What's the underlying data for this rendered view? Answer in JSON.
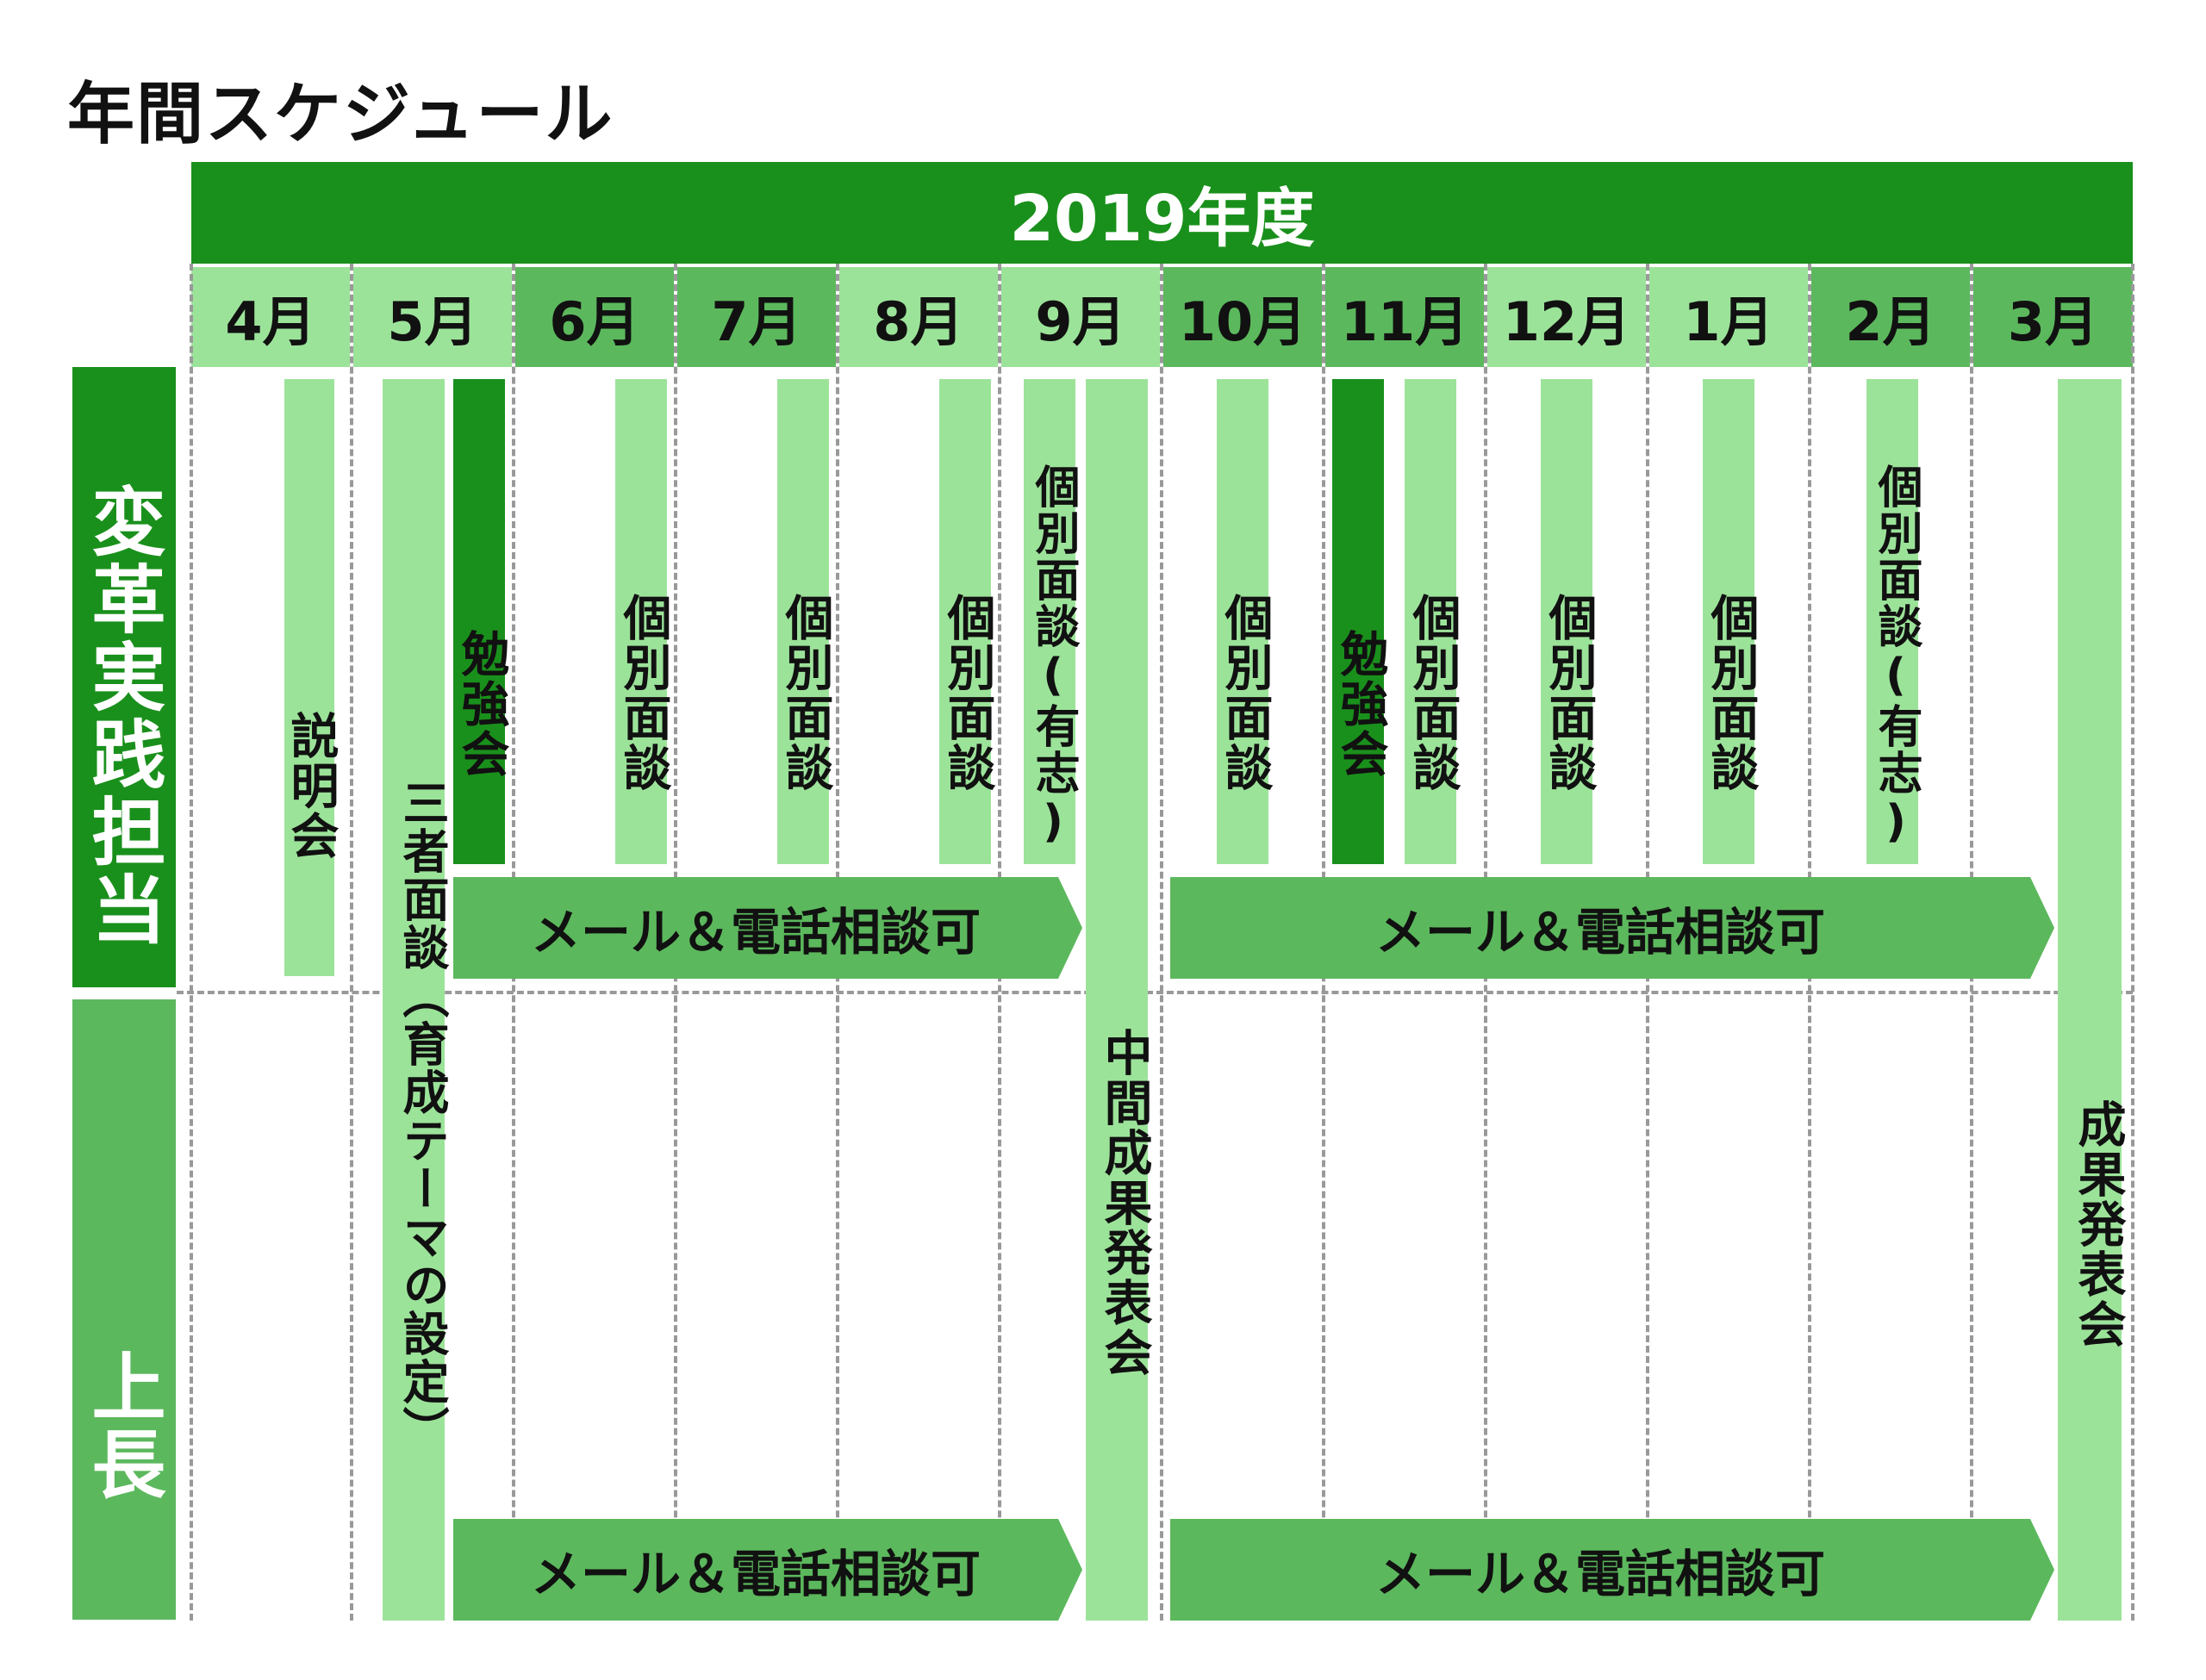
{
  "title": "年間スケジュール",
  "year_label": "2019年度",
  "months": [
    "4月",
    "5月",
    "6月",
    "7月",
    "8月",
    "9月",
    "10月",
    "11月",
    "12月",
    "1月",
    "2月",
    "3月"
  ],
  "roles": {
    "transformer": "変革実践担当",
    "manager": "上長"
  },
  "events": {
    "setsumeikai": "説明会",
    "sansha": "三者面談（育成テーマの設定）",
    "benkyo_1": "勉強会",
    "kobetsu_6": "個別面談",
    "kobetsu_7": "個別面談",
    "kobetsu_8": "個別面談",
    "kobetsu_9": "個別面談(有志)",
    "chukan": "中間成果発表会",
    "kobetsu_10": "個別面談",
    "benkyo_2": "勉強会",
    "kobetsu_11": "個別面談",
    "kobetsu_12": "個別面談",
    "kobetsu_1": "個別面談",
    "kobetsu_2": "個別面談(有志)",
    "seika": "成果発表会"
  },
  "contact": {
    "top_first": "メール＆電話相談可",
    "top_second": "メール＆電話相談可",
    "bottom_first": "メール＆電話相談可",
    "bottom_second": "メール＆電話相談可"
  }
}
